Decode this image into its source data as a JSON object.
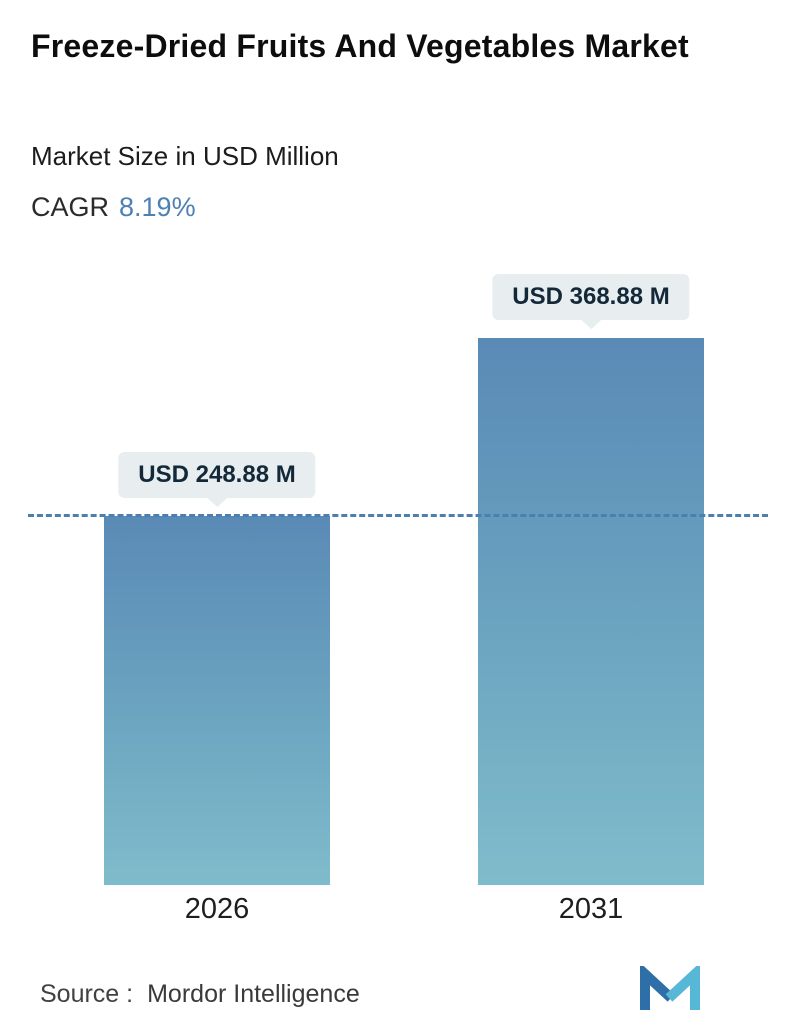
{
  "header": {
    "title": "Freeze-Dried Fruits And Vegetables Market",
    "subtitle": "Market Size in USD Million",
    "cagr_label": "CAGR",
    "cagr_value": "8.19%"
  },
  "chart_data": {
    "type": "bar",
    "categories": [
      "2026",
      "2031"
    ],
    "values": [
      248.88,
      368.88
    ],
    "bar_labels": [
      "USD 248.88 M",
      "USD 368.88 M"
    ],
    "title": "Freeze-Dried Fruits And Vegetables Market",
    "subtitle": "Market Size in USD Million",
    "xlabel": "",
    "ylabel": "Market Size (USD Million)",
    "ylim": [
      0,
      368.88
    ],
    "grid": false,
    "legend": "none",
    "reference_line_value": 248.88,
    "colors": {
      "bar_gradient_top": "#5a8ab6",
      "bar_gradient_bottom": "#7fbccb",
      "reference_line": "#4d7fae",
      "accent": "#4d80b3",
      "label_pill_bg": "#e8edef"
    }
  },
  "footer": {
    "source_label": "Source :",
    "source_value": "Mordor Intelligence",
    "logo": "mordor-intelligence-logo"
  }
}
